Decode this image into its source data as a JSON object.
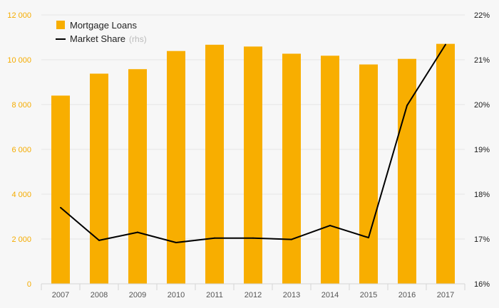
{
  "chart_data": {
    "type": "bar",
    "categories": [
      "2007",
      "2008",
      "2009",
      "2010",
      "2011",
      "2012",
      "2013",
      "2014",
      "2015",
      "2016",
      "2017"
    ],
    "series": [
      {
        "name": "Mortgage Loans",
        "type": "bar",
        "axis": "left",
        "color": "#f8ae00",
        "values": [
          8400,
          9380,
          9580,
          10390,
          10670,
          10590,
          10270,
          10180,
          9790,
          10040,
          10710
        ]
      },
      {
        "name": "Market Share",
        "name_suffix": "(rhs)",
        "type": "line",
        "axis": "right",
        "color": "#000000",
        "values": [
          17.7,
          16.97,
          17.15,
          16.92,
          17.02,
          17.02,
          16.99,
          17.3,
          17.03,
          19.98,
          21.34
        ]
      }
    ],
    "y_left": {
      "lim": [
        0,
        12000
      ],
      "ticks": [
        0,
        2000,
        4000,
        6000,
        8000,
        10000,
        12000
      ],
      "tick_labels": [
        "0",
        "2 000",
        "4 000",
        "6 000",
        "8 000",
        "10 000",
        "12 000"
      ],
      "color": "#f5ac00"
    },
    "y_right": {
      "lim": [
        16,
        22
      ],
      "ticks": [
        16,
        17,
        18,
        19,
        20,
        21,
        22
      ],
      "tick_labels": [
        "16%",
        "17%",
        "18%",
        "19%",
        "20%",
        "21%",
        "22%"
      ],
      "color": "#1a1a1a"
    },
    "grid": true,
    "legend": "top-left"
  }
}
